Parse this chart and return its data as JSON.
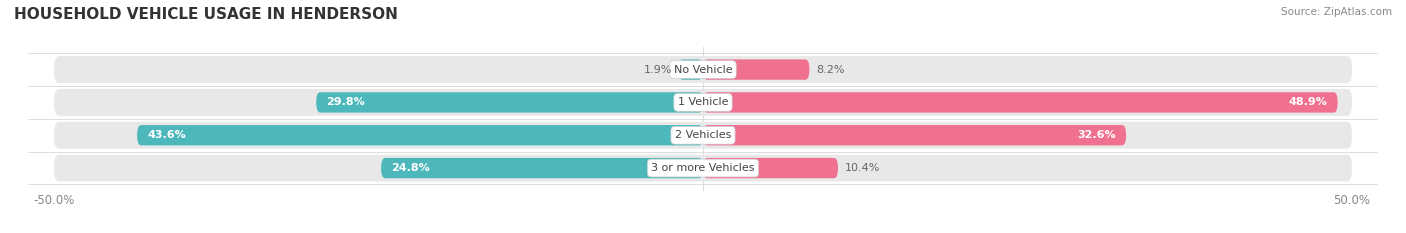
{
  "title": "HOUSEHOLD VEHICLE USAGE IN HENDERSON",
  "source": "Source: ZipAtlas.com",
  "categories": [
    "No Vehicle",
    "1 Vehicle",
    "2 Vehicles",
    "3 or more Vehicles"
  ],
  "owner_values": [
    1.9,
    29.8,
    43.6,
    24.8
  ],
  "renter_values": [
    8.2,
    48.9,
    32.6,
    10.4
  ],
  "owner_color": "#4db8bb",
  "renter_color": "#f07090",
  "owner_light_color": "#a8dfe0",
  "renter_light_color": "#f8b8cc",
  "axis_min": -50.0,
  "axis_max": 50.0,
  "bar_height": 0.62,
  "background_color": "#ffffff",
  "bar_bg_color": "#e8e8e8",
  "title_fontsize": 11,
  "label_fontsize": 8,
  "tick_fontsize": 8.5,
  "source_fontsize": 7.5
}
